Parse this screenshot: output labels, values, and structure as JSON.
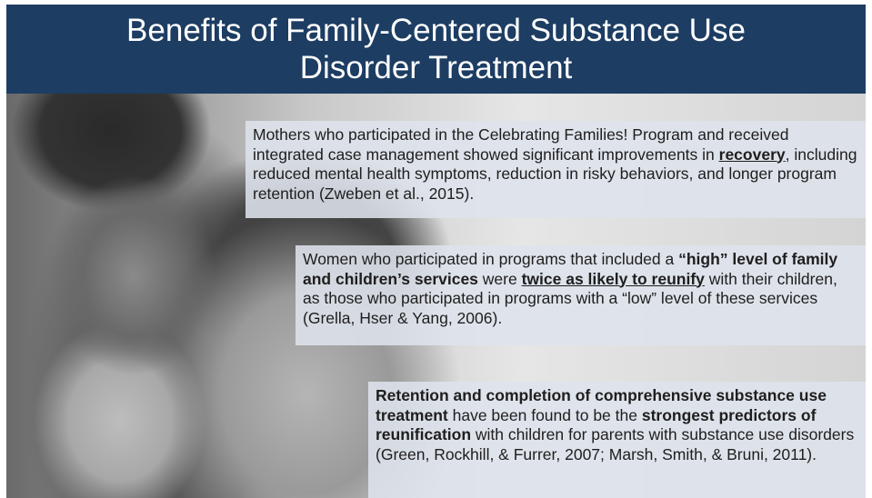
{
  "title_lines": [
    "Benefits of Family-Centered Substance Use",
    "Disorder Treatment"
  ],
  "boxes": [
    {
      "runs": [
        {
          "text": "Mothers who participated in the Celebrating Families! Program and received integrated case management showed significant improvements in ",
          "bold": false,
          "underline": false
        },
        {
          "text": "recovery",
          "bold": true,
          "underline": true
        },
        {
          "text": ", including reduced mental health symptoms, reduction in risky behaviors, and longer program retention (Zweben et al., 2015).",
          "bold": false,
          "underline": false
        }
      ]
    },
    {
      "runs": [
        {
          "text": "Women who participated in programs that included a ",
          "bold": false,
          "underline": false
        },
        {
          "text": "“high” level of family and children’s services",
          "bold": true,
          "underline": false
        },
        {
          "text": " were ",
          "bold": false,
          "underline": false
        },
        {
          "text": "twice as likely to reunify",
          "bold": true,
          "underline": true
        },
        {
          "text": " with their children, as those who participated in programs with a “low” level of these services (Grella, Hser & Yang, 2006).",
          "bold": false,
          "underline": false
        }
      ]
    },
    {
      "runs": [
        {
          "text": "Retention and completion of  comprehensive substance use treatment",
          "bold": true,
          "underline": false
        },
        {
          "text": " have been found to be the ",
          "bold": false,
          "underline": false
        },
        {
          "text": "strongest predictors of reunification",
          "bold": true,
          "underline": false
        },
        {
          "text": " with children for parents with substance use disorders (Green, Rockhill, & Furrer, 2007; Marsh, Smith, & Bruni, 2011).",
          "bold": false,
          "underline": false
        }
      ]
    }
  ]
}
